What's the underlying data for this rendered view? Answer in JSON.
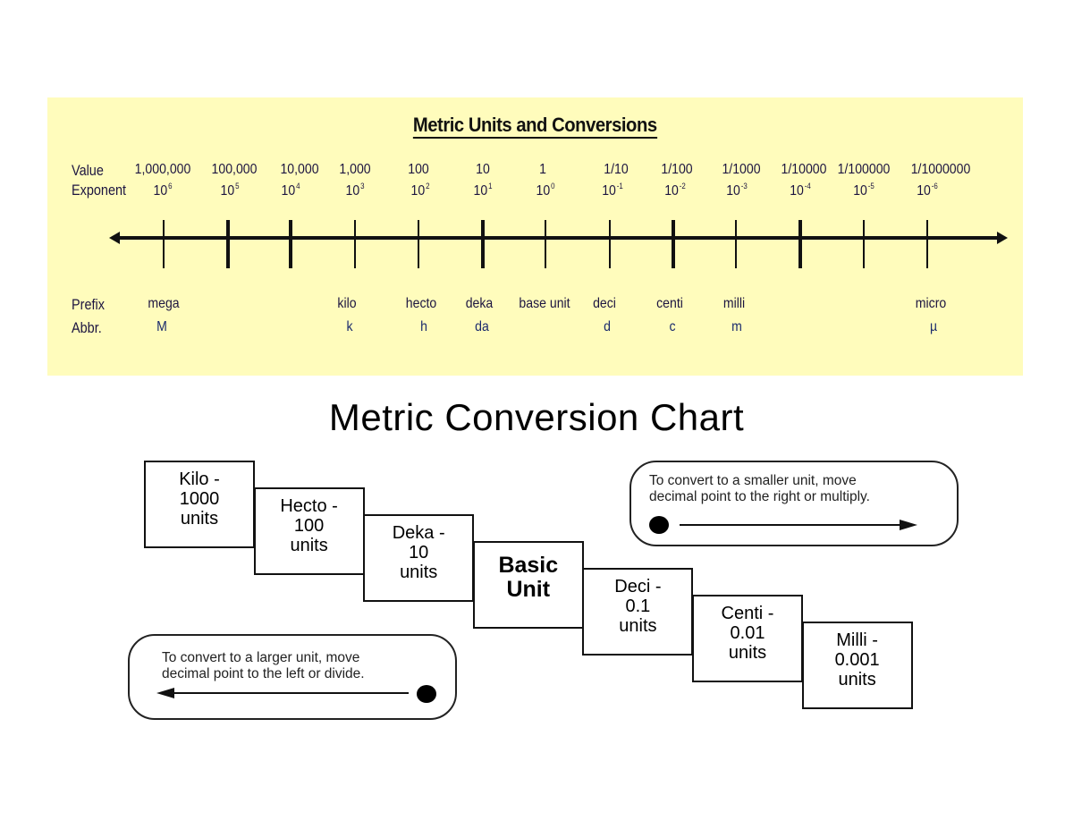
{
  "top_panel": {
    "title": "Metric Units and Conversions",
    "background_color": "#fffcbc",
    "row_labels": {
      "value": "Value",
      "exponent": "Exponent",
      "prefix": "Prefix",
      "abbr": "Abbr."
    },
    "columns": [
      {
        "value": "1,000,000",
        "base": "10",
        "exp": "6",
        "prefix": "mega",
        "abbr": "M"
      },
      {
        "value": "100,000",
        "base": "10",
        "exp": "5",
        "prefix": "",
        "abbr": ""
      },
      {
        "value": "10,000",
        "base": "10",
        "exp": "4",
        "prefix": "",
        "abbr": ""
      },
      {
        "value": "1,000",
        "base": "10",
        "exp": "3",
        "prefix": "kilo",
        "abbr": "k"
      },
      {
        "value": "100",
        "base": "10",
        "exp": "2",
        "prefix": "hecto",
        "abbr": "h"
      },
      {
        "value": "10",
        "base": "10",
        "exp": "1",
        "prefix": "deka",
        "abbr": "da"
      },
      {
        "value": "1",
        "base": "10",
        "exp": "0",
        "prefix": "base unit",
        "abbr": ""
      },
      {
        "value": "1/10",
        "base": "10",
        "exp": "-1",
        "prefix": "deci",
        "abbr": "d"
      },
      {
        "value": "1/100",
        "base": "10",
        "exp": "-2",
        "prefix": "centi",
        "abbr": "c"
      },
      {
        "value": "1/1000",
        "base": "10",
        "exp": "-3",
        "prefix": "milli",
        "abbr": "m"
      },
      {
        "value": "1/10000",
        "base": "10",
        "exp": "-4",
        "prefix": "",
        "abbr": ""
      },
      {
        "value": "1/100000",
        "base": "10",
        "exp": "-5",
        "prefix": "",
        "abbr": ""
      },
      {
        "value": "1/1000000",
        "base": "10",
        "exp": "-6",
        "prefix": "micro",
        "abbr": "µ"
      }
    ]
  },
  "chart": {
    "title": "Metric Conversion Chart",
    "steps": [
      {
        "text": "Kilo -\n1000\nunits",
        "bold": false
      },
      {
        "text": "Hecto -\n100\nunits",
        "bold": false
      },
      {
        "text": "Deka -\n10\nunits",
        "bold": false
      },
      {
        "text": "Basic\nUnit",
        "bold": true
      },
      {
        "text": "Deci -\n0.1\nunits",
        "bold": false
      },
      {
        "text": "Centi -\n0.01\nunits",
        "bold": false
      },
      {
        "text": "Milli -\n0.001\nunits",
        "bold": false
      }
    ],
    "notes": {
      "smaller": "To convert to a smaller unit, move\ndecimal  point to the right or multiply.",
      "larger": "To convert to a larger unit, move\ndecimal  point to the left or divide."
    }
  }
}
